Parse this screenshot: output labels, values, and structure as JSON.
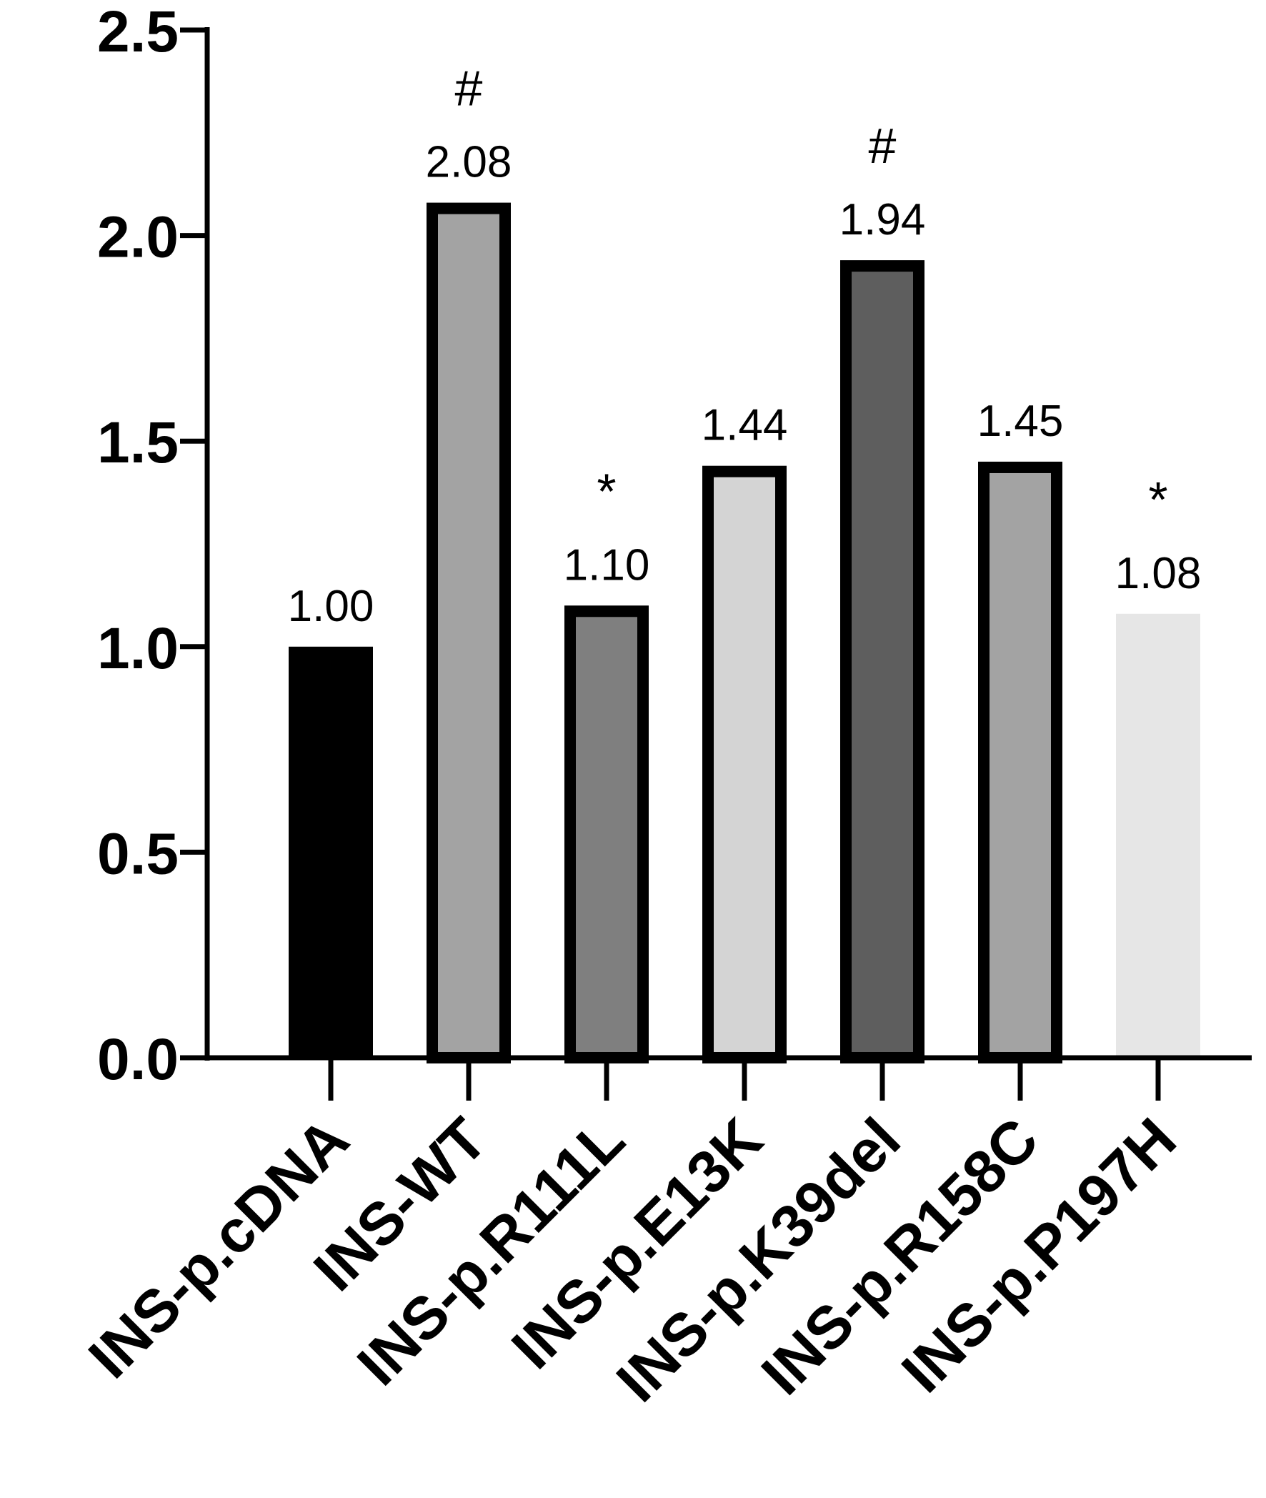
{
  "chart_data": {
    "type": "bar",
    "title": "",
    "xlabel": "",
    "ylabel": "",
    "ylim": [
      0,
      2.5
    ],
    "yticks": [
      "0.0",
      "0.5",
      "1.0",
      "1.5",
      "2.0",
      "2.5"
    ],
    "grid": false,
    "legend": "none",
    "categories": [
      "INS-p.cDNA",
      "INS-WT",
      "INS-p.R111L",
      "INS-p.E13K",
      "INS-p.K39del",
      "INS-p.R158C",
      "INS-p.P197H"
    ],
    "values": [
      1.0,
      2.08,
      1.1,
      1.44,
      1.94,
      1.45,
      1.08
    ],
    "value_labels": [
      "1.00",
      "2.08",
      "1.10",
      "1.44",
      "1.94",
      "1.45",
      "1.08"
    ],
    "significance": [
      "",
      "#",
      "*",
      "",
      "#",
      "",
      "*"
    ],
    "fill_colors": [
      "#000000",
      "#a3a3a3",
      "#7f7f7f",
      "#d4d4d4",
      "#5e5e5e",
      "#a3a3a3",
      "#e6e6e6"
    ],
    "border_colors": [
      "#000000",
      "#000000",
      "#000000",
      "#000000",
      "#000000",
      "#000000",
      "#e6e6e6"
    ]
  }
}
